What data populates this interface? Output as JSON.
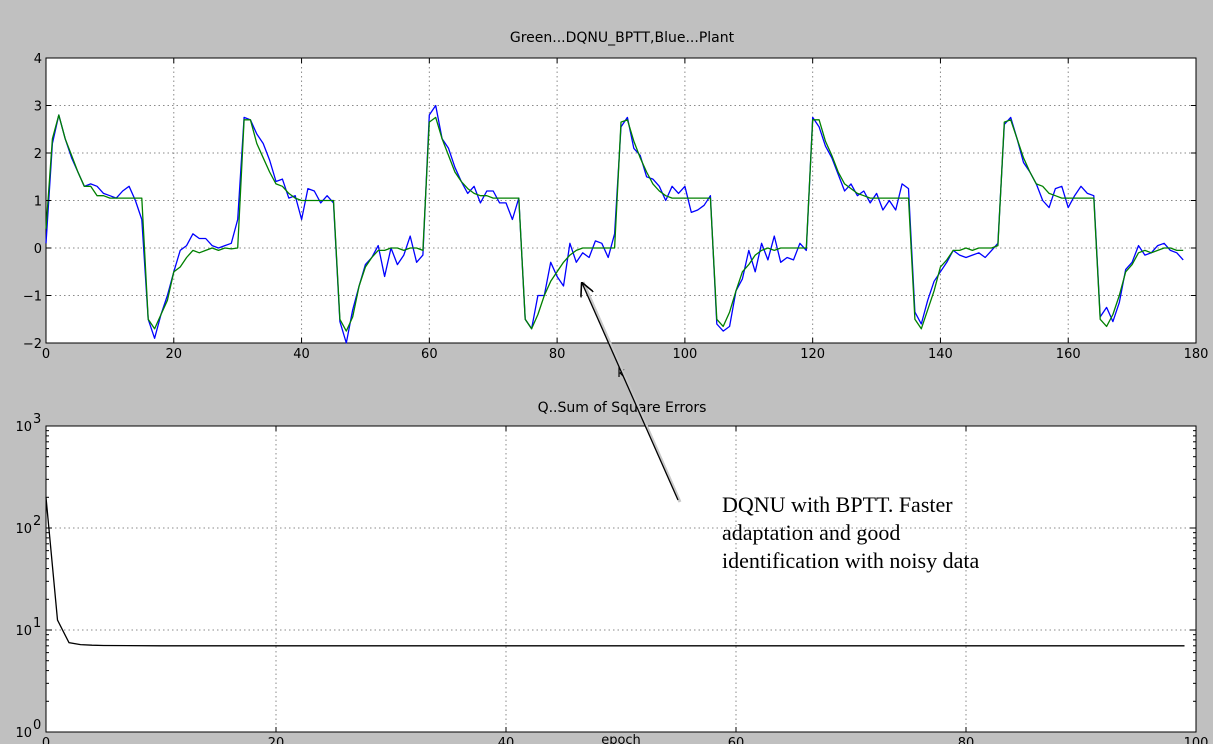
{
  "annotation": {
    "lines": [
      "DQNU with BPTT. Faster",
      "adaptation and good",
      "identification with noisy data"
    ]
  },
  "chart_data": [
    {
      "type": "line",
      "title": "Green...DQNU_BPTT,Blue...Plant",
      "xlabel": "k",
      "ylabel": "",
      "xlim": [
        0,
        180
      ],
      "ylim": [
        -2,
        4
      ],
      "xticks": [
        0,
        20,
        40,
        60,
        80,
        100,
        120,
        140,
        160,
        180
      ],
      "yticks": [
        -2,
        -1,
        0,
        1,
        2,
        3,
        4
      ],
      "grid": true,
      "series": [
        {
          "color": "#0000ff",
          "x_start": 0,
          "x_step": 1,
          "values": [
            0.1,
            2.2,
            2.8,
            2.3,
            1.9,
            1.6,
            1.3,
            1.35,
            1.3,
            1.15,
            1.1,
            1.05,
            1.2,
            1.3,
            1.0,
            0.6,
            -1.5,
            -1.9,
            -1.4,
            -1.0,
            -0.5,
            -0.05,
            0.05,
            0.3,
            0.2,
            0.2,
            0.05,
            0.0,
            0.05,
            0.1,
            0.6,
            2.75,
            2.7,
            2.4,
            2.2,
            1.85,
            1.4,
            1.45,
            1.05,
            1.1,
            0.6,
            1.25,
            1.2,
            0.95,
            1.1,
            0.95,
            -1.55,
            -2.0,
            -1.3,
            -0.8,
            -0.35,
            -0.2,
            0.05,
            -0.6,
            0.0,
            -0.35,
            -0.15,
            0.25,
            -0.3,
            -0.15,
            2.8,
            3.0,
            2.3,
            2.1,
            1.7,
            1.4,
            1.15,
            1.3,
            0.95,
            1.2,
            1.2,
            0.95,
            0.95,
            0.6,
            1.05,
            -1.5,
            -1.7,
            -1.0,
            -1.0,
            -0.3,
            -0.6,
            -0.8,
            0.1,
            -0.3,
            -0.1,
            -0.2,
            0.15,
            0.1,
            -0.2,
            0.3,
            2.55,
            2.75,
            2.1,
            1.95,
            1.5,
            1.45,
            1.3,
            1.0,
            1.3,
            1.15,
            1.3,
            0.75,
            0.8,
            0.9,
            1.1,
            -1.6,
            -1.75,
            -1.65,
            -0.9,
            -0.65,
            -0.05,
            -0.5,
            0.1,
            -0.25,
            0.25,
            -0.3,
            -0.2,
            -0.25,
            0.1,
            -0.05,
            2.75,
            2.55,
            2.15,
            1.9,
            1.55,
            1.2,
            1.35,
            1.1,
            1.2,
            0.95,
            1.15,
            0.8,
            1.0,
            0.8,
            1.35,
            1.25,
            -1.35,
            -1.6,
            -1.1,
            -0.7,
            -0.5,
            -0.3,
            -0.05,
            -0.15,
            -0.2,
            -0.15,
            -0.1,
            -0.2,
            -0.05,
            0.1,
            2.6,
            2.75,
            2.3,
            1.8,
            1.6,
            1.35,
            1.0,
            0.85,
            1.25,
            1.3,
            0.85,
            1.1,
            1.3,
            1.15,
            1.1,
            -1.45,
            -1.25,
            -1.55,
            -1.15,
            -0.45,
            -0.3,
            0.05,
            -0.15,
            -0.1,
            0.05,
            0.1,
            -0.05,
            -0.1,
            -0.25
          ]
        },
        {
          "color": "#008000",
          "x_start": 0,
          "x_step": 1,
          "values": [
            0.4,
            2.3,
            2.8,
            2.3,
            1.95,
            1.6,
            1.3,
            1.3,
            1.1,
            1.1,
            1.05,
            1.05,
            1.05,
            1.05,
            1.05,
            1.05,
            -1.5,
            -1.7,
            -1.4,
            -1.1,
            -0.5,
            -0.4,
            -0.2,
            -0.05,
            -0.1,
            -0.05,
            0.0,
            -0.05,
            0.0,
            -0.02,
            0.0,
            2.7,
            2.7,
            2.2,
            1.9,
            1.6,
            1.35,
            1.3,
            1.15,
            1.05,
            1.0,
            1.0,
            1.0,
            1.0,
            1.0,
            1.0,
            -1.5,
            -1.75,
            -1.45,
            -0.8,
            -0.4,
            -0.2,
            -0.05,
            -0.05,
            0.0,
            0.0,
            -0.05,
            0.0,
            0.0,
            -0.05,
            2.65,
            2.75,
            2.3,
            1.95,
            1.6,
            1.4,
            1.25,
            1.15,
            1.1,
            1.1,
            1.05,
            1.05,
            1.05,
            1.05,
            1.05,
            -1.5,
            -1.7,
            -1.4,
            -1.0,
            -0.7,
            -0.5,
            -0.3,
            -0.15,
            -0.05,
            0.0,
            0.0,
            0.0,
            0.0,
            0.0,
            0.0,
            2.65,
            2.7,
            2.25,
            1.9,
            1.6,
            1.35,
            1.2,
            1.1,
            1.05,
            1.05,
            1.05,
            1.05,
            1.05,
            1.05,
            1.05,
            -1.5,
            -1.65,
            -1.35,
            -0.9,
            -0.5,
            -0.35,
            -0.15,
            -0.05,
            0.0,
            -0.05,
            0.0,
            0.0,
            0.0,
            0.0,
            0.0,
            2.7,
            2.7,
            2.25,
            1.95,
            1.6,
            1.35,
            1.25,
            1.15,
            1.1,
            1.05,
            1.05,
            1.05,
            1.05,
            1.05,
            1.05,
            1.05,
            -1.5,
            -1.7,
            -1.3,
            -0.9,
            -0.4,
            -0.25,
            -0.05,
            -0.05,
            0.0,
            -0.05,
            0.0,
            0.0,
            0.0,
            0.05,
            2.65,
            2.7,
            2.3,
            1.9,
            1.6,
            1.35,
            1.3,
            1.15,
            1.1,
            1.05,
            1.05,
            1.05,
            1.05,
            1.05,
            1.05,
            -1.5,
            -1.65,
            -1.4,
            -1.0,
            -0.5,
            -0.35,
            -0.1,
            -0.05,
            -0.1,
            -0.05,
            0.0,
            0.0,
            -0.05,
            -0.05
          ]
        }
      ]
    },
    {
      "type": "line",
      "title": "Q..Sum of Square Errors",
      "xlabel": "epoch",
      "ylabel": "",
      "yscale": "log",
      "xlim": [
        0,
        100
      ],
      "ylim": [
        1,
        1000
      ],
      "xticks": [
        0,
        20,
        40,
        60,
        80,
        100
      ],
      "ytick_exponents": [
        "0",
        "1",
        "2",
        "3"
      ],
      "grid": true,
      "series": [
        {
          "color": "#000000",
          "x": [
            0,
            1,
            2,
            3,
            4,
            5,
            10,
            20,
            40,
            60,
            80,
            99
          ],
          "values": [
            200,
            12.5,
            7.5,
            7.2,
            7.1,
            7.05,
            7.0,
            7.0,
            7.0,
            7.0,
            7.0,
            7.0
          ]
        }
      ]
    }
  ]
}
